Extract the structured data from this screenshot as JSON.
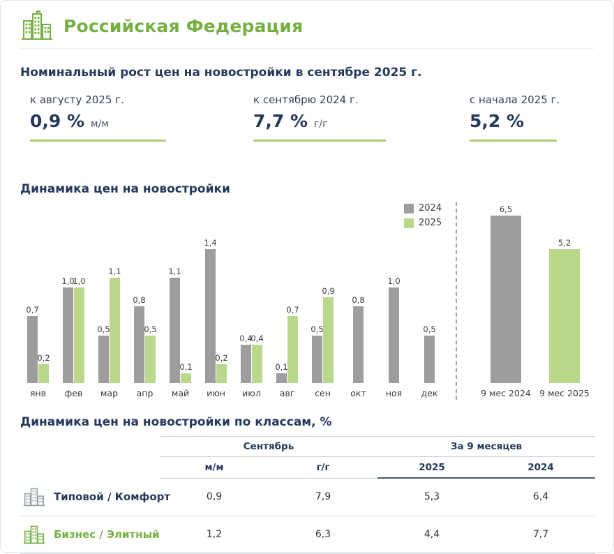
{
  "colors": {
    "accent_green": "#76b043",
    "bar_green": "#b9d88c",
    "bar_gray": "#9d9d9d",
    "heading_dark": "#24395b",
    "kpi_underline": "#a9d072"
  },
  "header": {
    "title": "Российская Федерация",
    "logo": "city-buildings-icon"
  },
  "summary": {
    "title": "Номинальный рост цен на новостройки в сентябре 2025 г.",
    "kpis": [
      {
        "label": "к августу 2025 г.",
        "value": "0,9 %",
        "suffix": "м/м"
      },
      {
        "label": "к сентябрю 2024 г.",
        "value": "7,7 %",
        "suffix": "г/г"
      },
      {
        "label": "с начала 2025 г.",
        "value": "5,2 %",
        "suffix": ""
      }
    ]
  },
  "dynamics": {
    "title": "Динамика цен на новостройки",
    "legend": [
      {
        "label": "2024",
        "color": "#9d9d9d"
      },
      {
        "label": "2025",
        "color": "#b9d88c"
      }
    ]
  },
  "chart_data": [
    {
      "type": "bar",
      "title": "Динамика цен на новостройки",
      "categories": [
        "янв",
        "фев",
        "мар",
        "апр",
        "май",
        "июн",
        "июл",
        "авг",
        "сен",
        "окт",
        "ноя",
        "дек"
      ],
      "series": [
        {
          "name": "2024",
          "color": "#9d9d9d",
          "values": [
            0.7,
            1.0,
            0.5,
            0.8,
            1.1,
            1.4,
            0.4,
            0.1,
            0.5,
            0.8,
            1.0,
            0.5
          ]
        },
        {
          "name": "2025",
          "color": "#b9d88c",
          "values": [
            0.2,
            1.0,
            1.1,
            0.5,
            0.1,
            0.2,
            0.4,
            0.7,
            0.9,
            null,
            null,
            null
          ]
        }
      ],
      "ylim": [
        0,
        1.5
      ],
      "grid": false,
      "legend_position": "top-right",
      "value_labels": true,
      "decimal_separator": ","
    },
    {
      "type": "bar",
      "title": "Итог за 9 месяцев",
      "categories": [
        "9 мес 2024",
        "9 мес 2025"
      ],
      "values": [
        6.5,
        5.2
      ],
      "colors": [
        "#9d9d9d",
        "#b9d88c"
      ],
      "ylim": [
        0,
        7
      ],
      "grid": false,
      "value_labels": true,
      "decimal_separator": ","
    }
  ],
  "classes_table": {
    "title": "Динамика цен на новостройки по классам, %",
    "group_headers": [
      {
        "label": "Сентябрь",
        "span": 2
      },
      {
        "label": "За 9 месяцев",
        "span": 2
      }
    ],
    "columns": [
      "м/м",
      "г/г",
      "2025",
      "2024"
    ],
    "rows": [
      {
        "label": "Типовой / Комфорт",
        "style": "standard",
        "icon": "buildings-gray-icon",
        "values": [
          "0,9",
          "7,9",
          "5,3",
          "6,4"
        ]
      },
      {
        "label": "Бизнес / Элитный",
        "style": "premium",
        "icon": "buildings-green-icon",
        "values": [
          "1,2",
          "6,3",
          "4,4",
          "7,7"
        ]
      }
    ]
  }
}
